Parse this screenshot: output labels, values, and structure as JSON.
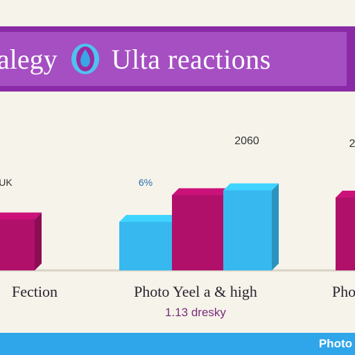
{
  "header": {
    "title_left": "alegy",
    "title_right": "Ulta reactions",
    "logo_icon": "drop-badge-icon"
  },
  "colors": {
    "banner": "#8a2aa6",
    "magenta": "#b0106a",
    "cyan": "#37b8ef",
    "footer": "#2fa6e9"
  },
  "footer": {
    "label": "Photo"
  },
  "chart_data": {
    "type": "bar",
    "categories": [
      "Fection",
      "Photo Yeel a & high",
      "Pho"
    ],
    "category_sublabels": [
      "",
      "1.13 dresky",
      ""
    ],
    "series": [
      {
        "color": "#b0106a",
        "values": [
          105,
          155,
          150
        ]
      },
      {
        "color": "#37b8ef",
        "values": [
          null,
          100,
          null
        ]
      },
      {
        "color": "#37b8ef",
        "values": [
          null,
          165,
          null
        ]
      }
    ],
    "data_labels": [
      "UK",
      "6%",
      "2060",
      "2"
    ],
    "ylim": [
      0,
      200
    ],
    "grid": false,
    "legend": "none"
  }
}
